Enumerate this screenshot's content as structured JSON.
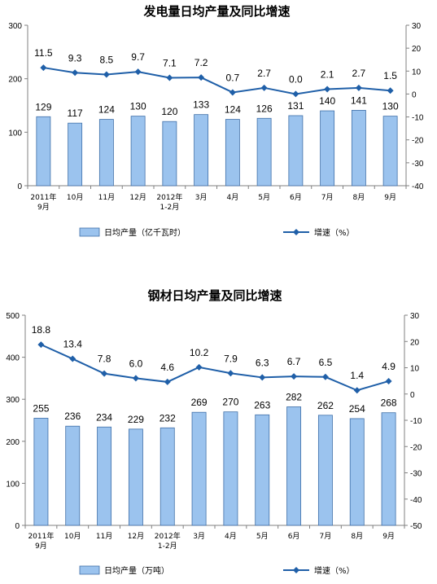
{
  "chart_data": [
    {
      "type": "bar",
      "title": "发电量日均产量及同比增速",
      "categories": [
        [
          "2011年",
          "9月"
        ],
        [
          "10月"
        ],
        [
          "11月"
        ],
        [
          "12月"
        ],
        [
          "2012年",
          "1-2月"
        ],
        [
          "3月"
        ],
        [
          "4月"
        ],
        [
          "5月"
        ],
        [
          "6月"
        ],
        [
          "7月"
        ],
        [
          "8月"
        ],
        [
          "9月"
        ]
      ],
      "series": [
        {
          "name": "日均产量（亿千瓦时）",
          "kind": "bar",
          "axis": "left",
          "values": [
            129,
            117,
            124,
            130,
            120,
            133,
            124,
            126,
            131,
            140,
            141,
            130
          ]
        },
        {
          "name": "增速（%）",
          "kind": "line",
          "axis": "right",
          "values": [
            11.5,
            9.3,
            8.5,
            9.7,
            7.1,
            7.2,
            0.7,
            2.7,
            0.0,
            2.1,
            2.7,
            1.5
          ],
          "labels": [
            "11.5",
            "9.3",
            "8.5",
            "9.7",
            "7.1",
            "7.2",
            "0.7",
            "2.7",
            "0.0",
            "2.1",
            "2.7",
            "1.5"
          ]
        }
      ],
      "y_left": {
        "min": 0,
        "max": 300,
        "ticks": [
          0,
          100,
          200,
          300
        ]
      },
      "y_right": {
        "min": -40,
        "max": 30,
        "ticks": [
          -40,
          -30,
          -20,
          -10,
          0,
          10,
          20,
          30
        ]
      },
      "legend_position": "bottom",
      "grid": false,
      "colors": {
        "bar_fill": "#9bc3ee",
        "bar_stroke": "#3f6fa8",
        "line": "#1f5fa8"
      }
    },
    {
      "type": "bar",
      "title": "钢材日均产量及同比增速",
      "categories": [
        [
          "2011年",
          "9月"
        ],
        [
          "10月"
        ],
        [
          "11月"
        ],
        [
          "12月"
        ],
        [
          "2012年",
          "1-2月"
        ],
        [
          "3月"
        ],
        [
          "4月"
        ],
        [
          "5月"
        ],
        [
          "6月"
        ],
        [
          "7月"
        ],
        [
          "8月"
        ],
        [
          "9月"
        ]
      ],
      "series": [
        {
          "name": "日均产量（万吨）",
          "kind": "bar",
          "axis": "left",
          "values": [
            255,
            236,
            234,
            229,
            232,
            269,
            270,
            263,
            282,
            262,
            254,
            268
          ]
        },
        {
          "name": "增速（%）",
          "kind": "line",
          "axis": "right",
          "values": [
            18.8,
            13.4,
            7.8,
            6.0,
            4.6,
            10.2,
            7.9,
            6.3,
            6.7,
            6.5,
            1.4,
            4.9
          ],
          "labels": [
            "18.8",
            "13.4",
            "7.8",
            "6.0",
            "4.6",
            "10.2",
            "7.9",
            "6.3",
            "6.7",
            "6.5",
            "1.4",
            "4.9"
          ]
        }
      ],
      "y_left": {
        "min": 0,
        "max": 500,
        "ticks": [
          0,
          100,
          200,
          300,
          400,
          500
        ]
      },
      "y_right": {
        "min": -50,
        "max": 30,
        "ticks": [
          -50,
          -40,
          -30,
          -20,
          -10,
          0,
          10,
          20,
          30
        ]
      },
      "legend_position": "bottom",
      "grid": false,
      "colors": {
        "bar_fill": "#9bc3ee",
        "bar_stroke": "#3f6fa8",
        "line": "#1f5fa8"
      }
    }
  ]
}
